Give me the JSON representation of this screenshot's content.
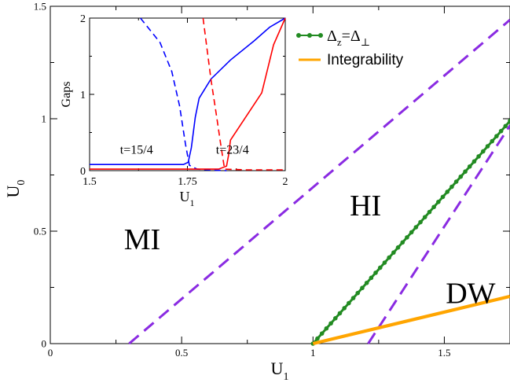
{
  "chart_data": [
    {
      "type": "line",
      "title": "",
      "xlabel": "U",
      "xlabel_sub": "1",
      "ylabel": "U",
      "ylabel_sub": "0",
      "xlim": [
        0,
        1.75
      ],
      "ylim": [
        0,
        1.5
      ],
      "xticks": [
        0,
        0.5,
        1,
        1.5
      ],
      "xtick_labels": [
        "0",
        "0.5",
        "1",
        "1.5"
      ],
      "yticks": [
        0,
        0.5,
        1,
        1.5
      ],
      "ytick_labels": [
        "0",
        "0.5",
        "1",
        "1.5"
      ],
      "grid": false,
      "legend_position": "top-right",
      "series": [
        {
          "name": "",
          "color": "#8a2be2",
          "dash": "dashed",
          "x": [
            0.3,
            1.75
          ],
          "y": [
            0,
            1.44
          ]
        },
        {
          "name": "",
          "color": "#8a2be2",
          "dash": "dashed",
          "x": [
            1.21,
            1.75
          ],
          "y": [
            0,
            0.97
          ]
        },
        {
          "name": "Δz=Δ⊥",
          "legend_main": "Δ",
          "legend_sub1": "z",
          "legend_eq": "=Δ",
          "legend_sub2": "⊥",
          "color": "#228b22",
          "dash": "solid",
          "marker": "circle",
          "x": [
            1.0,
            1.75
          ],
          "y": [
            0.0,
            0.99
          ]
        },
        {
          "name": "Integrability",
          "color": "#ffa500",
          "dash": "solid",
          "x": [
            1.0,
            1.75
          ],
          "y": [
            0.0,
            0.21
          ]
        }
      ],
      "annotations": [
        {
          "text": "MI",
          "x": 0.35,
          "y": 0.42
        },
        {
          "text": "HI",
          "x": 1.2,
          "y": 0.57
        },
        {
          "text": "DW",
          "x": 1.6,
          "y": 0.18
        }
      ]
    },
    {
      "type": "line",
      "title": "",
      "xlabel": "U",
      "xlabel_sub": "1",
      "ylabel": "Gaps",
      "xlim": [
        1.5,
        2
      ],
      "ylim": [
        0,
        2
      ],
      "xticks": [
        1.5,
        1.75,
        2
      ],
      "xtick_labels": [
        "1.5",
        "1.75",
        "2"
      ],
      "yticks": [
        0,
        1,
        2
      ],
      "ytick_labels": [
        "0",
        "1",
        "2"
      ],
      "grid": false,
      "series": [
        {
          "name": "",
          "color": "#0000ff",
          "dash": "solid",
          "x": [
            1.5,
            1.74,
            1.752,
            1.76,
            1.77,
            1.78,
            1.81,
            1.86,
            1.92,
            1.96,
            2.0
          ],
          "y": [
            0.08,
            0.08,
            0.11,
            0.3,
            0.7,
            0.95,
            1.2,
            1.45,
            1.7,
            1.88,
            2.0
          ]
        },
        {
          "name": "",
          "color": "#0000ff",
          "dash": "dashed",
          "x": [
            1.63,
            1.68,
            1.71,
            1.73,
            1.745,
            1.755,
            1.775,
            1.8,
            1.85
          ],
          "y": [
            2.0,
            1.68,
            1.3,
            0.85,
            0.35,
            0.07,
            0.02,
            0.01,
            0.0
          ]
        },
        {
          "name": "",
          "color": "#ff0000",
          "dash": "solid",
          "x": [
            1.5,
            1.83,
            1.85,
            1.855,
            1.86,
            1.94,
            1.97,
            2.0
          ],
          "y": [
            0.02,
            0.02,
            0.06,
            0.2,
            0.4,
            1.02,
            1.65,
            2.0
          ]
        },
        {
          "name": "",
          "color": "#ff0000",
          "dash": "dashed",
          "x": [
            1.79,
            1.8,
            1.81,
            1.825,
            1.835,
            1.845,
            1.9,
            2.0
          ],
          "y": [
            2.0,
            1.6,
            1.2,
            0.7,
            0.35,
            0.02,
            0.01,
            0.01
          ]
        }
      ],
      "annotations": [
        {
          "text": "t=15/4",
          "x": 1.62,
          "y": 0.22
        },
        {
          "text": "t=23/4",
          "x": 1.865,
          "y": 0.22
        }
      ]
    }
  ]
}
